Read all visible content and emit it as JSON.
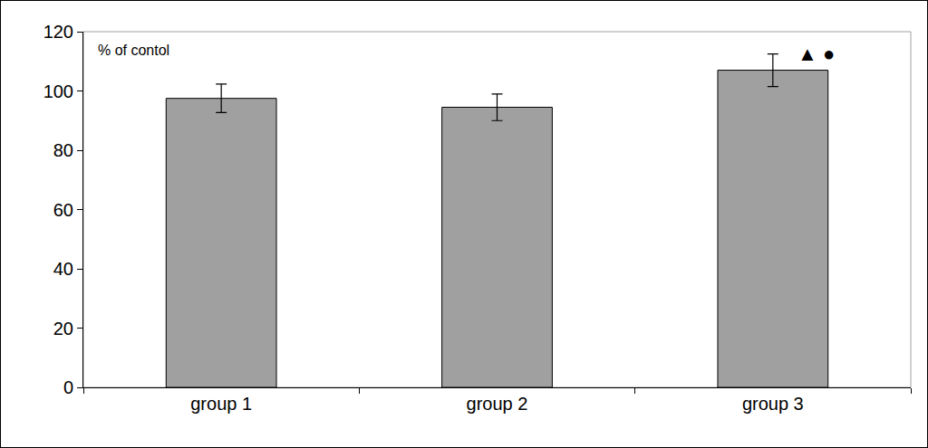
{
  "chart_data": {
    "type": "bar",
    "y_label": "% of contol",
    "categories": [
      "group 1",
      "group 2",
      "group 3"
    ],
    "values": [
      97.5,
      94.5,
      107
    ],
    "errors": [
      4.8,
      4.5,
      5.5
    ],
    "color": "#a0a0a0",
    "ylim": [
      0,
      120
    ],
    "yticks": [
      0,
      20,
      40,
      60,
      80,
      100,
      120
    ],
    "grid": false,
    "annotations": [
      {
        "text": "▲ ●",
        "category": "group 3"
      }
    ]
  }
}
